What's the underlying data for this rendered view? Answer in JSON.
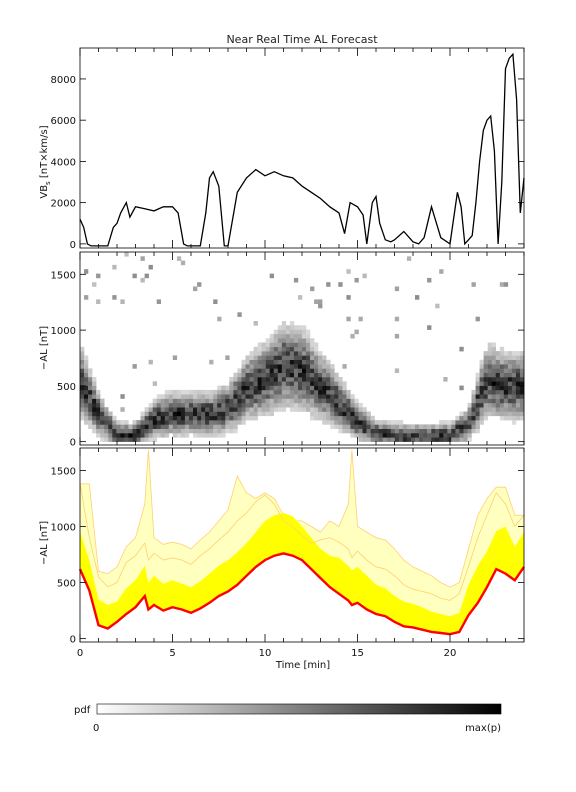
{
  "chart_data": {
    "title": "Near Real Time AL Forecast",
    "xlabel": "Time [min]",
    "xlim": [
      0,
      24
    ],
    "x_ticks": [
      "0",
      "5",
      "10",
      "15",
      "20"
    ],
    "x_tick_values": [
      0,
      5,
      10,
      15,
      20
    ],
    "panels": [
      {
        "type": "line",
        "ylabel": "VBs [nT×km/s]",
        "ylabel_main": "VB",
        "ylabel_sub": "s",
        "ylabel_rest": " [nT×km/s]",
        "ylim": [
          -200,
          9500
        ],
        "y_ticks": [
          0,
          2000,
          4000,
          6000,
          8000
        ],
        "line_color": "#000000",
        "series": [
          {
            "x": [
              0,
              0.2,
              0.4,
              0.6,
              1.0,
              1.5,
              1.8,
              2.0,
              2.2,
              2.5,
              2.7,
              3.0,
              3.5,
              4.0,
              4.5,
              5.0,
              5.3,
              5.6,
              5.8,
              6.0,
              6.2,
              6.5,
              6.8,
              7.0,
              7.2,
              7.5,
              7.8,
              8.0,
              8.5,
              9.0,
              9.5,
              10.0,
              10.5,
              11.0,
              11.5,
              12.0,
              12.5,
              13.0,
              13.5,
              14.0,
              14.3,
              14.6,
              15.0,
              15.3,
              15.5,
              15.8,
              16.0,
              16.2,
              16.5,
              16.8,
              17.0,
              17.5,
              18.0,
              18.3,
              18.6,
              19.0,
              19.5,
              20.0,
              20.4,
              20.6,
              20.8,
              21.0,
              21.2,
              21.4,
              21.6,
              21.8,
              22.0,
              22.2,
              22.4,
              22.6,
              22.8,
              23.0,
              23.2,
              23.4,
              23.6,
              23.8,
              24.0
            ],
            "y": [
              1200,
              800,
              0,
              -100,
              -100,
              -100,
              800,
              1000,
              1500,
              2000,
              1300,
              1800,
              1700,
              1600,
              1800,
              1800,
              1500,
              0,
              -100,
              -100,
              -100,
              -100,
              1500,
              3200,
              3500,
              2800,
              -100,
              -100,
              2500,
              3200,
              3600,
              3300,
              3500,
              3300,
              3200,
              2800,
              2500,
              2200,
              1800,
              1500,
              500,
              2000,
              1800,
              1400,
              0,
              2000,
              2300,
              1000,
              200,
              100,
              200,
              600,
              100,
              0,
              300,
              1800,
              300,
              0,
              2500,
              1800,
              0,
              200,
              400,
              2000,
              4000,
              5500,
              6000,
              6200,
              4500,
              0,
              3000,
              8500,
              9000,
              9200,
              7000,
              1500,
              3200
            ]
          }
        ]
      },
      {
        "type": "heatmap",
        "ylabel": "−AL [nT]",
        "ylim": [
          -30,
          1700
        ],
        "y_ticks": [
          0,
          500,
          1000,
          1500
        ],
        "ridge_x": [
          0,
          1,
          2,
          3,
          4,
          5,
          6,
          7,
          8,
          9,
          10,
          11,
          12,
          13,
          14,
          15,
          16,
          17,
          18,
          19,
          20,
          21,
          22,
          23,
          24
        ],
        "ridge_y": [
          550,
          250,
          60,
          60,
          200,
          250,
          250,
          250,
          300,
          480,
          560,
          680,
          650,
          500,
          350,
          180,
          80,
          60,
          50,
          50,
          60,
          150,
          550,
          500,
          500
        ]
      },
      {
        "type": "area",
        "ylabel": "−AL [nT]",
        "ylim": [
          -30,
          1700
        ],
        "y_ticks": [
          0,
          500,
          1000,
          1500
        ],
        "x": [
          0,
          0.5,
          1,
          1.5,
          2,
          2.5,
          3,
          3.5,
          3.7,
          4,
          4.5,
          5,
          5.5,
          6,
          6.5,
          7,
          7.5,
          8,
          8.5,
          9,
          9.5,
          10,
          10.5,
          11,
          11.5,
          12,
          12.5,
          13,
          13.5,
          14,
          14.5,
          14.7,
          15,
          15.5,
          16,
          16.5,
          17,
          17.5,
          18,
          18.5,
          19,
          19.5,
          20,
          20.5,
          21,
          21.5,
          22,
          22.5,
          23,
          23.5,
          24
        ],
        "series": [
          {
            "values": [
              620,
              430,
              120,
              90,
              150,
              220,
              280,
              380,
              260,
              300,
              250,
              280,
              260,
              230,
              270,
              320,
              380,
              420,
              480,
              560,
              640,
              700,
              740,
              760,
              740,
              700,
              620,
              540,
              460,
              400,
              340,
              300,
              320,
              260,
              220,
              200,
              150,
              110,
              100,
              80,
              60,
              50,
              40,
              60,
              210,
              320,
              460,
              620,
              580,
              520,
              640
            ],
            "color": "#ff0000"
          },
          {
            "values": [
              950,
              700,
              350,
              300,
              330,
              450,
              520,
              650,
              500,
              560,
              490,
              520,
              490,
              460,
              510,
              580,
              650,
              700,
              770,
              850,
              950,
              1050,
              1100,
              1120,
              1090,
              1000,
              900,
              800,
              740,
              720,
              650,
              610,
              640,
              560,
              480,
              450,
              380,
              330,
              310,
              280,
              240,
              220,
              200,
              230,
              480,
              650,
              780,
              960,
              1000,
              820,
              950
            ],
            "color": "#ffff00"
          },
          {
            "values": [
              1380,
              900,
              550,
              460,
              500,
              680,
              740,
              850,
              700,
              760,
              700,
              720,
              700,
              660,
              740,
              800,
              880,
              950,
              1050,
              1120,
              1220,
              1280,
              1200,
              1050,
              1000,
              920,
              850,
              880,
              900,
              860,
              800,
              720,
              780,
              700,
              640,
              620,
              560,
              480,
              440,
              420,
              400,
              360,
              340,
              400,
              640,
              900,
              1100,
              1300,
              1200,
              1000,
              1100
            ],
            "color": "#ffffc0"
          },
          {
            "values": [
              1380,
              1380,
              600,
              580,
              640,
              820,
              900,
              1200,
              1680,
              900,
              840,
              860,
              840,
              800,
              880,
              950,
              1050,
              1150,
              1450,
              1300,
              1250,
              1300,
              1250,
              1100,
              1050,
              1050,
              1000,
              950,
              1050,
              1000,
              1200,
              1680,
              1000,
              950,
              900,
              880,
              800,
              700,
              640,
              600,
              560,
              500,
              460,
              500,
              800,
              1100,
              1250,
              1350,
              1350,
              1100,
              1100
            ],
            "color": "#ffd070"
          }
        ]
      }
    ],
    "colorbar": {
      "label": "pdf",
      "min_label": "0",
      "max_label": "max(p)",
      "from_color": "#ffffff",
      "to_color": "#000000"
    }
  }
}
